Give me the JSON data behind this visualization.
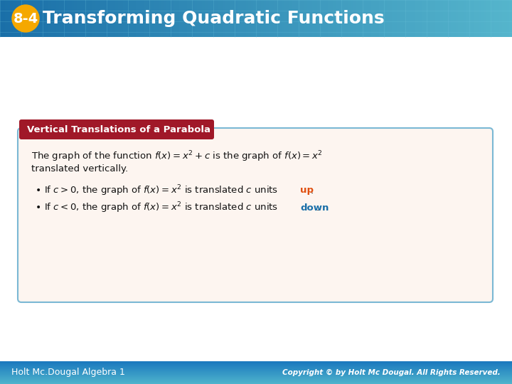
{
  "title_number": "8-4",
  "title_text": "Transforming Quadratic Functions",
  "badge_color": "#f5a800",
  "slide_bg": "#ffffff",
  "box_border_color": "#7ab8d4",
  "box_bg": "#fdf5f0",
  "header_label_bg": "#a01828",
  "header_label_text": "Vertical Translations of a Parabola",
  "bullet1_color": "#e05010",
  "bullet1_color_word": "up",
  "bullet2_color": "#1a6fa8",
  "bullet2_color_word": "down",
  "footer_left": "Holt Mc.Dougal Algebra 1",
  "footer_right": "Copyright © by Holt Mc Dougal. All Rights Reserved."
}
